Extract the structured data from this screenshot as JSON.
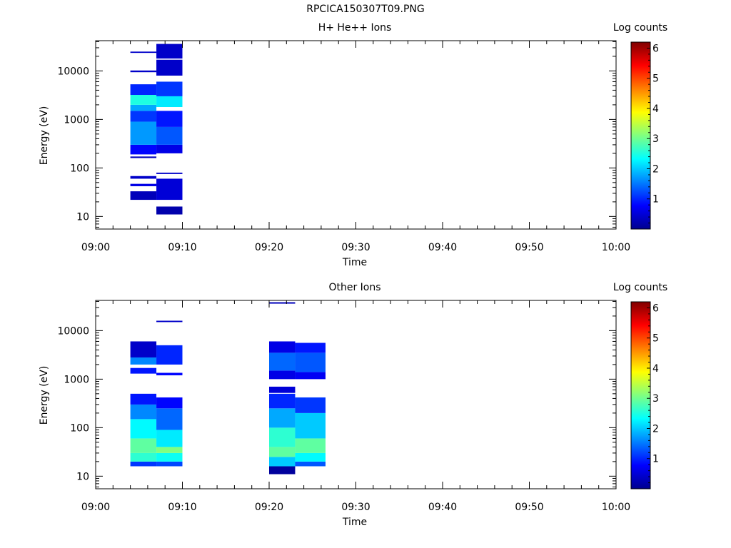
{
  "title": "RPCICA150307T09.PNG",
  "colors": {
    "colormap": [
      "#00008f",
      "#0000ff",
      "#0080ff",
      "#00ffff",
      "#80ff80",
      "#ffff00",
      "#ff8000",
      "#ff0000",
      "#800000"
    ]
  },
  "chart_data": [
    {
      "type": "heatmap",
      "title": "H+ He++ Ions",
      "xlabel": "Time",
      "ylabel": "Energy (eV)",
      "x_ticks": [
        "09:00",
        "09:10",
        "09:20",
        "09:30",
        "09:40",
        "09:50",
        "10:00"
      ],
      "x_range": [
        "09:00",
        "10:00"
      ],
      "y_scale": "log",
      "y_ticks": [
        "10",
        "100",
        "1000",
        "10000"
      ],
      "y_range": [
        5.5,
        42000
      ],
      "colorbar": {
        "label": "Log counts",
        "ticks": [
          "1",
          "2",
          "3",
          "4",
          "5",
          "6"
        ],
        "range": [
          0,
          6.2
        ]
      },
      "columns": [
        {
          "start": "09:04",
          "end": "09:07",
          "bands": [
            {
              "emin": 160,
              "emax": 172,
              "value": 0.3
            },
            {
              "emin": 190,
              "emax": 300,
              "value": 0.8
            },
            {
              "emin": 300,
              "emax": 900,
              "value": 1.7
            },
            {
              "emin": 900,
              "emax": 1500,
              "value": 1.1
            },
            {
              "emin": 1500,
              "emax": 2000,
              "value": 1.8
            },
            {
              "emin": 2000,
              "emax": 3200,
              "value": 2.5
            },
            {
              "emin": 3200,
              "emax": 5300,
              "value": 1.0
            },
            {
              "emin": 9400,
              "emax": 10200,
              "value": 0.4
            },
            {
              "emin": 23500,
              "emax": 25000,
              "value": 0.4
            },
            {
              "emin": 60,
              "emax": 68,
              "value": 0.4
            },
            {
              "emin": 42,
              "emax": 47,
              "value": 0.6
            },
            {
              "emin": 22,
              "emax": 33,
              "value": 0.3
            }
          ]
        },
        {
          "start": "09:07",
          "end": "09:10",
          "bands": [
            {
              "emin": 11,
              "emax": 16,
              "value": 0.2
            },
            {
              "emin": 22,
              "emax": 60,
              "value": 0.5
            },
            {
              "emin": 75,
              "emax": 80,
              "value": 0.4
            },
            {
              "emin": 200,
              "emax": 300,
              "value": 0.6
            },
            {
              "emin": 300,
              "emax": 700,
              "value": 1.3
            },
            {
              "emin": 700,
              "emax": 1500,
              "value": 0.9
            },
            {
              "emin": 1800,
              "emax": 3000,
              "value": 2.2
            },
            {
              "emin": 3000,
              "emax": 6000,
              "value": 1.1
            },
            {
              "emin": 8000,
              "emax": 17000,
              "value": 0.4
            },
            {
              "emin": 18000,
              "emax": 36000,
              "value": 0.4
            }
          ]
        }
      ]
    },
    {
      "type": "heatmap",
      "title": "Other Ions",
      "xlabel": "Time",
      "ylabel": "Energy (eV)",
      "x_ticks": [
        "09:00",
        "09:10",
        "09:20",
        "09:30",
        "09:40",
        "09:50",
        "10:00"
      ],
      "x_range": [
        "09:00",
        "10:00"
      ],
      "y_scale": "log",
      "y_ticks": [
        "10",
        "100",
        "1000",
        "10000"
      ],
      "y_range": [
        5.5,
        42000
      ],
      "colorbar": {
        "label": "Log counts",
        "ticks": [
          "1",
          "2",
          "3",
          "4",
          "5",
          "6"
        ],
        "range": [
          0,
          6.2
        ]
      },
      "columns": [
        {
          "start": "09:04",
          "end": "09:07",
          "bands": [
            {
              "emin": 16,
              "emax": 20,
              "value": 1.1
            },
            {
              "emin": 20,
              "emax": 30,
              "value": 2.6
            },
            {
              "emin": 30,
              "emax": 60,
              "value": 2.9
            },
            {
              "emin": 60,
              "emax": 150,
              "value": 2.3
            },
            {
              "emin": 150,
              "emax": 300,
              "value": 1.6
            },
            {
              "emin": 300,
              "emax": 500,
              "value": 0.9
            },
            {
              "emin": 1300,
              "emax": 1700,
              "value": 0.9
            },
            {
              "emin": 2000,
              "emax": 2800,
              "value": 1.6
            },
            {
              "emin": 2800,
              "emax": 6000,
              "value": 0.4
            }
          ]
        },
        {
          "start": "09:07",
          "end": "09:10",
          "bands": [
            {
              "emin": 16,
              "emax": 20,
              "value": 1.2
            },
            {
              "emin": 20,
              "emax": 30,
              "value": 2.4
            },
            {
              "emin": 30,
              "emax": 40,
              "value": 3.1
            },
            {
              "emin": 40,
              "emax": 90,
              "value": 2.2
            },
            {
              "emin": 90,
              "emax": 250,
              "value": 1.4
            },
            {
              "emin": 250,
              "emax": 420,
              "value": 0.8
            },
            {
              "emin": 1200,
              "emax": 1350,
              "value": 0.8
            },
            {
              "emin": 2000,
              "emax": 5000,
              "value": 1.0
            },
            {
              "emin": 15000,
              "emax": 16000,
              "value": 0.4
            }
          ]
        },
        {
          "start": "09:20",
          "end": "09:23",
          "bands": [
            {
              "emin": 11,
              "emax": 16,
              "value": 0.1
            },
            {
              "emin": 16,
              "emax": 25,
              "value": 2.0
            },
            {
              "emin": 25,
              "emax": 40,
              "value": 2.9
            },
            {
              "emin": 40,
              "emax": 100,
              "value": 2.6
            },
            {
              "emin": 100,
              "emax": 250,
              "value": 1.8
            },
            {
              "emin": 250,
              "emax": 500,
              "value": 1.0
            },
            {
              "emin": 520,
              "emax": 700,
              "value": 0.5
            },
            {
              "emin": 1000,
              "emax": 1500,
              "value": 0.6
            },
            {
              "emin": 1500,
              "emax": 3500,
              "value": 1.4
            },
            {
              "emin": 3500,
              "emax": 6000,
              "value": 0.6
            },
            {
              "emin": 36000,
              "emax": 38500,
              "value": 0.3
            }
          ]
        },
        {
          "start": "09:23",
          "end": "09:26.5",
          "bands": [
            {
              "emin": 16,
              "emax": 20,
              "value": 1.3
            },
            {
              "emin": 20,
              "emax": 30,
              "value": 2.3
            },
            {
              "emin": 30,
              "emax": 60,
              "value": 2.9
            },
            {
              "emin": 60,
              "emax": 200,
              "value": 2.0
            },
            {
              "emin": 200,
              "emax": 420,
              "value": 1.1
            },
            {
              "emin": 1000,
              "emax": 1400,
              "value": 0.7
            },
            {
              "emin": 1400,
              "emax": 3500,
              "value": 1.3
            },
            {
              "emin": 3500,
              "emax": 5600,
              "value": 0.9
            }
          ]
        }
      ]
    }
  ]
}
